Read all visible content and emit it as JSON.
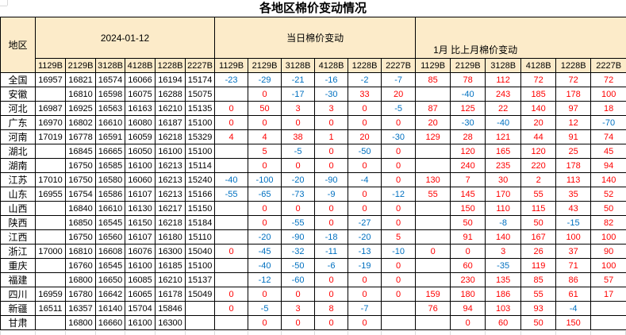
{
  "title": "各地区棉价变动情况",
  "table": {
    "region_header": "地区",
    "groups": [
      {
        "label": "2024-01-12",
        "grades": [
          "1129B",
          "2129B",
          "3128B",
          "4128B",
          "1228B",
          "2227B"
        ]
      },
      {
        "label": "当日棉价变动",
        "grades": [
          "1129B",
          "2129B",
          "3128B",
          "4128B",
          "1228B",
          "2227B"
        ]
      },
      {
        "label": "1月 比上月棉价变动",
        "grades": [
          "1129B",
          "2129B",
          "3128B",
          "4128B",
          "1228B",
          "2227B"
        ]
      }
    ],
    "colors": {
      "positive": "#fe0000",
      "negative": "#0070c0",
      "price_text": "#000000",
      "header_bg": "#fcebc9"
    },
    "rows": [
      {
        "region": "全国",
        "price": [
          "16957",
          "16821",
          "16574",
          "16066",
          "16194",
          "15174"
        ],
        "daily": [
          "-23",
          "-29",
          "-21",
          "-16",
          "-2",
          "-7"
        ],
        "monthly": [
          "85",
          "78",
          "112",
          "72",
          "72",
          "72"
        ]
      },
      {
        "region": "安徽",
        "price": [
          "",
          "16810",
          "16598",
          "16075",
          "16288",
          "15075"
        ],
        "daily": [
          "",
          "0",
          "-17",
          "-30",
          "33",
          "20"
        ],
        "monthly": [
          "",
          "-40",
          "243",
          "185",
          "178",
          "100"
        ]
      },
      {
        "region": "河北",
        "price": [
          "16987",
          "16925",
          "16563",
          "16163",
          "16210",
          "15135"
        ],
        "daily": [
          "0",
          "50",
          "3",
          "3",
          "0",
          "-5"
        ],
        "monthly": [
          "87",
          "125",
          "22",
          "140",
          "97",
          "18"
        ]
      },
      {
        "region": "广东",
        "price": [
          "16970",
          "16802",
          "16610",
          "16080",
          "16187",
          "15100"
        ],
        "daily": [
          "0",
          "0",
          "0",
          "0",
          "0",
          "0"
        ],
        "monthly": [
          "20",
          "-30",
          "-40",
          "20",
          "12",
          "-70"
        ]
      },
      {
        "region": "河南",
        "price": [
          "17019",
          "16778",
          "16591",
          "16059",
          "16218",
          "15329"
        ],
        "daily": [
          "4",
          "4",
          "38",
          "1",
          "20",
          "-30"
        ],
        "monthly": [
          "129",
          "28",
          "121",
          "44",
          "91",
          "74"
        ]
      },
      {
        "region": "湖北",
        "price": [
          "",
          "16845",
          "16665",
          "16050",
          "16100",
          "15100"
        ],
        "daily": [
          "",
          "5",
          "-5",
          "0",
          "-50",
          "0"
        ],
        "monthly": [
          "",
          "120",
          "165",
          "120",
          "25",
          "45"
        ]
      },
      {
        "region": "湖南",
        "price": [
          "",
          "16750",
          "16585",
          "16100",
          "16213",
          "15114"
        ],
        "daily": [
          "",
          "0",
          "0",
          "0",
          "0",
          "0"
        ],
        "monthly": [
          "",
          "240",
          "235",
          "220",
          "178",
          "94"
        ]
      },
      {
        "region": "江苏",
        "price": [
          "17010",
          "16750",
          "16580",
          "16060",
          "16213",
          "15240"
        ],
        "daily": [
          "-40",
          "-100",
          "-20",
          "-90",
          "-4",
          "0"
        ],
        "monthly": [
          "130",
          "7",
          "30",
          "2",
          "113",
          "140"
        ]
      },
      {
        "region": "山东",
        "price": [
          "16955",
          "16754",
          "16586",
          "16107",
          "16213",
          "15166"
        ],
        "daily": [
          "-55",
          "-65",
          "-73",
          "-9",
          "0",
          "-12"
        ],
        "monthly": [
          "55",
          "145",
          "170",
          "55",
          "35",
          "52"
        ]
      },
      {
        "region": "山西",
        "price": [
          "",
          "16840",
          "16610",
          "16130",
          "16217",
          "15150"
        ],
        "daily": [
          "",
          "0",
          "0",
          "0",
          "0",
          "0"
        ],
        "monthly": [
          "",
          "150",
          "110",
          "115",
          "43",
          "50"
        ]
      },
      {
        "region": "陕西",
        "price": [
          "",
          "16850",
          "16545",
          "16150",
          "16218",
          "15184"
        ],
        "daily": [
          "",
          "0",
          "-55",
          "0",
          "-27",
          "0"
        ],
        "monthly": [
          "",
          "50",
          "-8",
          "50",
          "-15",
          "82"
        ]
      },
      {
        "region": "江西",
        "price": [
          "",
          "16750",
          "16560",
          "16107",
          "16180",
          "15110"
        ],
        "daily": [
          "",
          "-20",
          "-90",
          "-18",
          "-20",
          "5"
        ],
        "monthly": [
          "",
          "91",
          "140",
          "167",
          "100",
          "100"
        ]
      },
      {
        "region": "浙江",
        "price": [
          "17000",
          "16810",
          "16608",
          "16076",
          "16300",
          "15040"
        ],
        "daily": [
          "0",
          "-45",
          "-32",
          "-11",
          "-13",
          "-10"
        ],
        "monthly": [
          "0",
          "0",
          "3",
          "26",
          "37",
          "90"
        ]
      },
      {
        "region": "重庆",
        "price": [
          "",
          "16760",
          "16545",
          "16100",
          "16185",
          "15100"
        ],
        "daily": [
          "",
          "-40",
          "-50",
          "-6",
          "-19",
          "0"
        ],
        "monthly": [
          "",
          "60",
          "-35",
          "119",
          "71",
          "100"
        ]
      },
      {
        "region": "福建",
        "price": [
          "",
          "16800",
          "16650",
          "16085",
          "16210",
          "15137"
        ],
        "daily": [
          "",
          "-12",
          "-60",
          "0",
          "0",
          "0"
        ],
        "monthly": [
          "",
          "230",
          "135",
          "85",
          "86",
          "57"
        ]
      },
      {
        "region": "四川",
        "price": [
          "16959",
          "16780",
          "16642",
          "16065",
          "16178",
          "15049"
        ],
        "daily": [
          "0",
          "0",
          "0",
          "0",
          "0",
          "0"
        ],
        "monthly": [
          "159",
          "180",
          "186",
          "55",
          "61",
          "17"
        ]
      },
      {
        "region": "新疆",
        "price": [
          "16511",
          "16357",
          "16140",
          "15704",
          "15846",
          ""
        ],
        "daily": [
          "0",
          "-5",
          "3",
          "8",
          "-7",
          ""
        ],
        "monthly": [
          "76",
          "94",
          "103",
          "93",
          "-4",
          ""
        ]
      },
      {
        "region": "甘肃",
        "price": [
          "",
          "16800",
          "16660",
          "16100",
          "16300",
          ""
        ],
        "daily": [
          "",
          "0",
          "0",
          "0",
          "0",
          ""
        ],
        "monthly": [
          "",
          "0",
          "60",
          "50",
          "150",
          ""
        ]
      }
    ]
  }
}
